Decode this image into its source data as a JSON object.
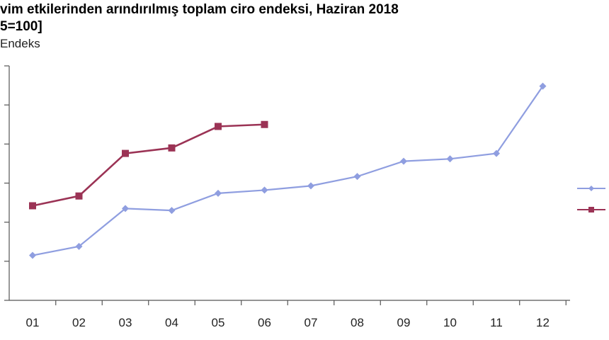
{
  "title_line1": "vim etkilerinden arındırılmış toplam ciro endeksi, Haziran 2018",
  "title_line2": "5=100]",
  "chart_data": {
    "type": "line",
    "categories": [
      "01",
      "02",
      "03",
      "04",
      "05",
      "06",
      "07",
      "08",
      "09",
      "10",
      "11",
      "12"
    ],
    "ylabel": "Endeks",
    "ylim": [
      0,
      6
    ],
    "grid": false,
    "legend": "right",
    "series": [
      {
        "color": "#8f9ee0",
        "marker": "diamond",
        "values": [
          1.15,
          1.38,
          2.35,
          2.3,
          2.74,
          2.82,
          2.93,
          3.17,
          3.56,
          3.62,
          3.76,
          5.48
        ]
      },
      {
        "color": "#9b3355",
        "marker": "square",
        "values": [
          2.42,
          2.67,
          3.76,
          3.9,
          4.45,
          4.5,
          null,
          null,
          null,
          null,
          null,
          null
        ]
      }
    ]
  }
}
